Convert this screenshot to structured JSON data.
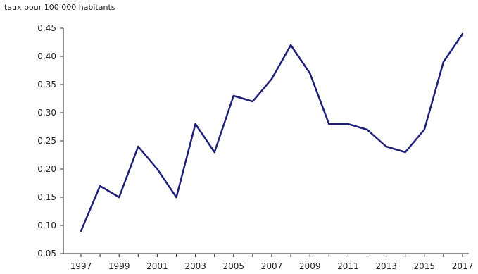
{
  "chart_data": {
    "type": "line",
    "title": "",
    "ylabel": "taux pour 100 000 habitants",
    "xlabel": "",
    "x": [
      1997,
      1998,
      1999,
      2000,
      2001,
      2002,
      2003,
      2004,
      2005,
      2006,
      2007,
      2008,
      2009,
      2010,
      2011,
      2012,
      2013,
      2014,
      2015,
      2016,
      2017
    ],
    "x_tick_labels": [
      "1997",
      "1999",
      "2001",
      "2003",
      "2005",
      "2007",
      "2009",
      "2011",
      "2013",
      "2015",
      "2017"
    ],
    "y_tick_labels": [
      "0,05",
      "0,10",
      "0,15",
      "0,20",
      "0,25",
      "0,30",
      "0,35",
      "0,40",
      "0,45"
    ],
    "series": [
      {
        "values": [
          0.09,
          0.17,
          0.15,
          0.24,
          0.2,
          0.15,
          0.28,
          0.23,
          0.33,
          0.32,
          0.36,
          0.42,
          0.37,
          0.28,
          0.28,
          0.27,
          0.24,
          0.23,
          0.27,
          0.39,
          0.44
        ]
      }
    ],
    "ylim": [
      0.05,
      0.45
    ],
    "xlim": [
      1997,
      2017
    ],
    "grid": false,
    "legend": "none",
    "line_color": "#1f1f7a",
    "axis_color": "#222222"
  }
}
